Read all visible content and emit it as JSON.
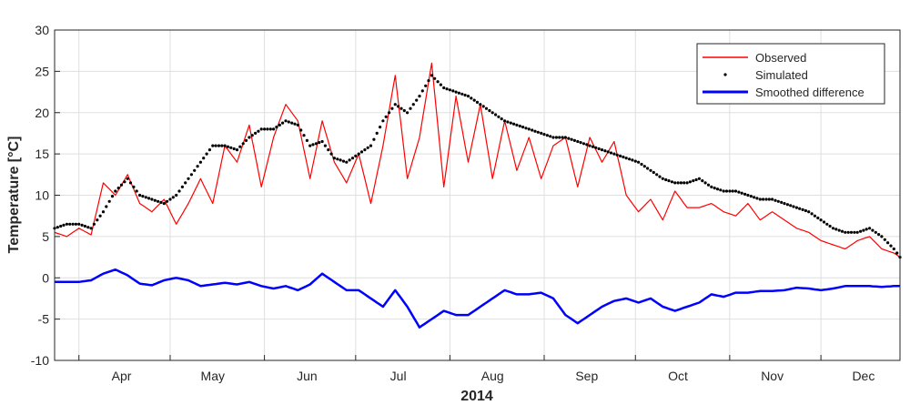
{
  "chart_data": {
    "type": "line",
    "xlabel": "2014",
    "ylabel": "Temperature [°C]",
    "ylim": [
      -10,
      30
    ],
    "yticks": [
      -10,
      -5,
      0,
      5,
      10,
      15,
      20,
      25,
      30
    ],
    "xlim": [
      "2014-03-24",
      "2014-12-27"
    ],
    "month_ticks": [
      "2014-04-01",
      "2014-05-01",
      "2014-06-01",
      "2014-07-01",
      "2014-08-01",
      "2014-09-01",
      "2014-10-01",
      "2014-11-01",
      "2014-12-01"
    ],
    "month_labels": [
      "Apr",
      "May",
      "Jun",
      "Jul",
      "Aug",
      "Sep",
      "Oct",
      "Nov",
      "Dec"
    ],
    "month_label_dates": [
      "2014-04-15",
      "2014-05-15",
      "2014-06-15",
      "2014-07-15",
      "2014-08-15",
      "2014-09-15",
      "2014-10-15",
      "2014-11-15",
      "2014-12-15"
    ],
    "grid": true,
    "legend_position": "top-right",
    "series": [
      {
        "name": "Observed",
        "style": "line",
        "color": "#ff0000",
        "dates": [
          "2014-03-24",
          "2014-03-28",
          "2014-04-01",
          "2014-04-05",
          "2014-04-09",
          "2014-04-13",
          "2014-04-17",
          "2014-04-21",
          "2014-04-25",
          "2014-04-29",
          "2014-05-03",
          "2014-05-07",
          "2014-05-11",
          "2014-05-15",
          "2014-05-19",
          "2014-05-23",
          "2014-05-27",
          "2014-05-31",
          "2014-06-04",
          "2014-06-08",
          "2014-06-12",
          "2014-06-16",
          "2014-06-20",
          "2014-06-24",
          "2014-06-28",
          "2014-07-02",
          "2014-07-06",
          "2014-07-10",
          "2014-07-14",
          "2014-07-18",
          "2014-07-22",
          "2014-07-26",
          "2014-07-30",
          "2014-08-03",
          "2014-08-07",
          "2014-08-11",
          "2014-08-15",
          "2014-08-19",
          "2014-08-23",
          "2014-08-27",
          "2014-08-31",
          "2014-09-04",
          "2014-09-08",
          "2014-09-12",
          "2014-09-16",
          "2014-09-20",
          "2014-09-24",
          "2014-09-28",
          "2014-10-02",
          "2014-10-06",
          "2014-10-10",
          "2014-10-14",
          "2014-10-18",
          "2014-10-22",
          "2014-10-26",
          "2014-10-30",
          "2014-11-03",
          "2014-11-07",
          "2014-11-11",
          "2014-11-15",
          "2014-11-19",
          "2014-11-23",
          "2014-11-27",
          "2014-12-01",
          "2014-12-05",
          "2014-12-09",
          "2014-12-13",
          "2014-12-17",
          "2014-12-21",
          "2014-12-25",
          "2014-12-27"
        ],
        "values": [
          5.5,
          5.0,
          6.0,
          5.2,
          11.5,
          10.0,
          12.5,
          9.0,
          8.0,
          9.5,
          6.5,
          9.0,
          12.0,
          9.0,
          16.0,
          14.0,
          18.5,
          11.0,
          17.0,
          21.0,
          19.0,
          12.0,
          19.0,
          14.0,
          11.5,
          15.0,
          9.0,
          16.0,
          24.5,
          12.0,
          17.0,
          26.0,
          11.0,
          22.0,
          14.0,
          21.0,
          12.0,
          19.0,
          13.0,
          17.0,
          12.0,
          16.0,
          17.0,
          11.0,
          17.0,
          14.0,
          16.5,
          10.0,
          8.0,
          9.5,
          7.0,
          10.5,
          8.5,
          8.5,
          9.0,
          8.0,
          7.5,
          9.0,
          7.0,
          8.0,
          7.0,
          6.0,
          5.5,
          4.5,
          4.0,
          3.5,
          4.5,
          5.0,
          3.5,
          3.0,
          2.5
        ]
      },
      {
        "name": "Simulated",
        "style": "points",
        "color": "#000000",
        "dates": [
          "2014-03-24",
          "2014-03-28",
          "2014-04-01",
          "2014-04-05",
          "2014-04-09",
          "2014-04-13",
          "2014-04-17",
          "2014-04-21",
          "2014-04-25",
          "2014-04-29",
          "2014-05-03",
          "2014-05-07",
          "2014-05-11",
          "2014-05-15",
          "2014-05-19",
          "2014-05-23",
          "2014-05-27",
          "2014-05-31",
          "2014-06-04",
          "2014-06-08",
          "2014-06-12",
          "2014-06-16",
          "2014-06-20",
          "2014-06-24",
          "2014-06-28",
          "2014-07-02",
          "2014-07-06",
          "2014-07-10",
          "2014-07-14",
          "2014-07-18",
          "2014-07-22",
          "2014-07-26",
          "2014-07-30",
          "2014-08-03",
          "2014-08-07",
          "2014-08-11",
          "2014-08-15",
          "2014-08-19",
          "2014-08-23",
          "2014-08-27",
          "2014-08-31",
          "2014-09-04",
          "2014-09-08",
          "2014-09-12",
          "2014-09-16",
          "2014-09-20",
          "2014-09-24",
          "2014-09-28",
          "2014-10-02",
          "2014-10-06",
          "2014-10-10",
          "2014-10-14",
          "2014-10-18",
          "2014-10-22",
          "2014-10-26",
          "2014-10-30",
          "2014-11-03",
          "2014-11-07",
          "2014-11-11",
          "2014-11-15",
          "2014-11-19",
          "2014-11-23",
          "2014-11-27",
          "2014-12-01",
          "2014-12-05",
          "2014-12-09",
          "2014-12-13",
          "2014-12-17",
          "2014-12-21",
          "2014-12-25",
          "2014-12-27"
        ],
        "values": [
          6.0,
          6.5,
          6.5,
          6.0,
          8.0,
          10.5,
          12.0,
          10.0,
          9.5,
          9.0,
          10.0,
          12.0,
          14.0,
          16.0,
          16.0,
          15.5,
          17.0,
          18.0,
          18.0,
          19.0,
          18.5,
          16.0,
          16.5,
          14.5,
          14.0,
          15.0,
          16.0,
          19.0,
          21.0,
          20.0,
          22.0,
          24.5,
          23.0,
          22.5,
          22.0,
          21.0,
          20.0,
          19.0,
          18.5,
          18.0,
          17.5,
          17.0,
          17.0,
          16.5,
          16.0,
          15.5,
          15.0,
          14.5,
          14.0,
          13.0,
          12.0,
          11.5,
          11.5,
          12.0,
          11.0,
          10.5,
          10.5,
          10.0,
          9.5,
          9.5,
          9.0,
          8.5,
          8.0,
          7.0,
          6.0,
          5.5,
          5.5,
          6.0,
          5.0,
          3.5,
          2.5
        ]
      },
      {
        "name": "Smoothed difference",
        "style": "thick-line",
        "color": "#0000ff",
        "dates": [
          "2014-03-24",
          "2014-03-28",
          "2014-04-01",
          "2014-04-05",
          "2014-04-09",
          "2014-04-13",
          "2014-04-17",
          "2014-04-21",
          "2014-04-25",
          "2014-04-29",
          "2014-05-03",
          "2014-05-07",
          "2014-05-11",
          "2014-05-15",
          "2014-05-19",
          "2014-05-23",
          "2014-05-27",
          "2014-05-31",
          "2014-06-04",
          "2014-06-08",
          "2014-06-12",
          "2014-06-16",
          "2014-06-20",
          "2014-06-24",
          "2014-06-28",
          "2014-07-02",
          "2014-07-06",
          "2014-07-10",
          "2014-07-14",
          "2014-07-18",
          "2014-07-22",
          "2014-07-26",
          "2014-07-30",
          "2014-08-03",
          "2014-08-07",
          "2014-08-11",
          "2014-08-15",
          "2014-08-19",
          "2014-08-23",
          "2014-08-27",
          "2014-08-31",
          "2014-09-04",
          "2014-09-08",
          "2014-09-12",
          "2014-09-16",
          "2014-09-20",
          "2014-09-24",
          "2014-09-28",
          "2014-10-02",
          "2014-10-06",
          "2014-10-10",
          "2014-10-14",
          "2014-10-18",
          "2014-10-22",
          "2014-10-26",
          "2014-10-30",
          "2014-11-03",
          "2014-11-07",
          "2014-11-11",
          "2014-11-15",
          "2014-11-19",
          "2014-11-23",
          "2014-11-27",
          "2014-12-01",
          "2014-12-05",
          "2014-12-09",
          "2014-12-13",
          "2014-12-17",
          "2014-12-21",
          "2014-12-25",
          "2014-12-27"
        ],
        "values": [
          -0.5,
          -0.5,
          -0.5,
          -0.3,
          0.5,
          1.0,
          0.3,
          -0.7,
          -0.9,
          -0.3,
          0.0,
          -0.3,
          -1.0,
          -0.8,
          -0.6,
          -0.8,
          -0.5,
          -1.0,
          -1.3,
          -1.0,
          -1.5,
          -0.8,
          0.5,
          -0.5,
          -1.5,
          -1.5,
          -2.5,
          -3.5,
          -1.5,
          -3.5,
          -6.0,
          -5.0,
          -4.0,
          -4.5,
          -4.5,
          -3.5,
          -2.5,
          -1.5,
          -2.0,
          -2.0,
          -1.8,
          -2.5,
          -4.5,
          -5.5,
          -4.5,
          -3.5,
          -2.8,
          -2.5,
          -3.0,
          -2.5,
          -3.5,
          -4.0,
          -3.5,
          -3.0,
          -2.0,
          -2.3,
          -1.8,
          -1.8,
          -1.6,
          -1.6,
          -1.5,
          -1.2,
          -1.3,
          -1.5,
          -1.3,
          -1.0,
          -1.0,
          -1.0,
          -1.1,
          -1.0,
          -1.0
        ]
      }
    ]
  }
}
